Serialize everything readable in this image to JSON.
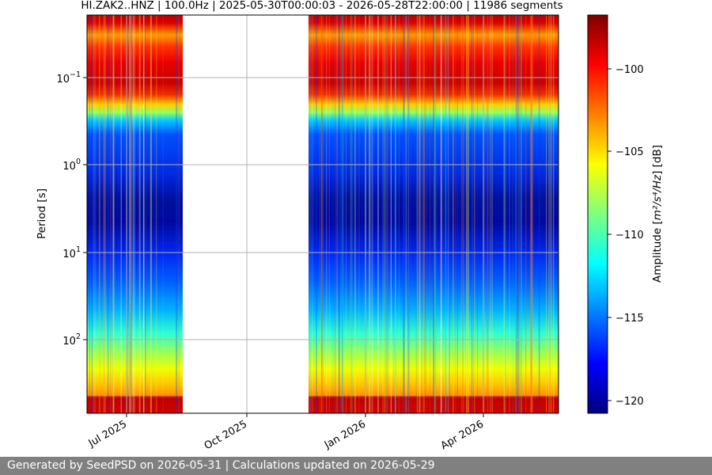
{
  "chart_data": {
    "type": "heatmap",
    "title": "HI.ZAK2..HNZ | 100.0Hz | 2025-05-30T00:00:03 - 2026-05-28T22:00:00 | 11986 segments",
    "xlabel": "",
    "ylabel": "Period [s]",
    "y_scale": "log",
    "ylim": [
      73.5,
      0.0185
    ],
    "x_tick_labels": [
      "Jul 2025",
      "Oct 2025",
      "Jan 2026",
      "Apr 2026"
    ],
    "x_ticks": [
      "2025-07-01",
      "2025-10-01",
      "2026-01-01",
      "2026-04-01"
    ],
    "xlim": [
      "2025-05-30",
      "2026-05-28"
    ],
    "y_ticks": [
      {
        "base": "10",
        "exp": "−1",
        "value": 0.1
      },
      {
        "base": "10",
        "exp": "0",
        "value": 1
      },
      {
        "base": "10",
        "exp": "1",
        "value": 10
      },
      {
        "base": "10",
        "exp": "2",
        "value": 100
      }
    ],
    "data_gap": [
      "2025-08-13",
      "2025-11-17"
    ],
    "colorbar": {
      "label": "Amplitude [m²/s⁴/Hz] [dB]",
      "label_main": "Amplitude [",
      "label_unit": "m²/s⁴/Hz",
      "label_end": "] [dB]",
      "colormap": "jet",
      "range": [
        -121,
        -97.3
      ],
      "ticks": [
        -100,
        -105,
        -110,
        -115,
        -120
      ],
      "tick_labels": [
        "−100",
        "−105",
        "−110",
        "−115",
        "−120"
      ]
    },
    "grid": true,
    "amplitude_profile": [
      {
        "period": 0.02,
        "dB": -98.5
      },
      {
        "period": 0.1,
        "dB": -99
      },
      {
        "period": 0.25,
        "dB": -102
      },
      {
        "period": 0.35,
        "dB": -112
      },
      {
        "period": 0.6,
        "dB": -117
      },
      {
        "period": 2.5,
        "dB": -115
      },
      {
        "period": 5,
        "dB": -120
      },
      {
        "period": 20,
        "dB": -120
      },
      {
        "period": 60,
        "dB": -114
      },
      {
        "period": 200,
        "dB": -106
      },
      {
        "period": 600,
        "dB": -103
      }
    ]
  },
  "footer": {
    "text": "Generated by SeedPSD on 2026-05-31 | Calculations updated on 2026-05-29"
  },
  "colors": {
    "footer_bg": "#808080",
    "grid": "#b0b0b0"
  }
}
